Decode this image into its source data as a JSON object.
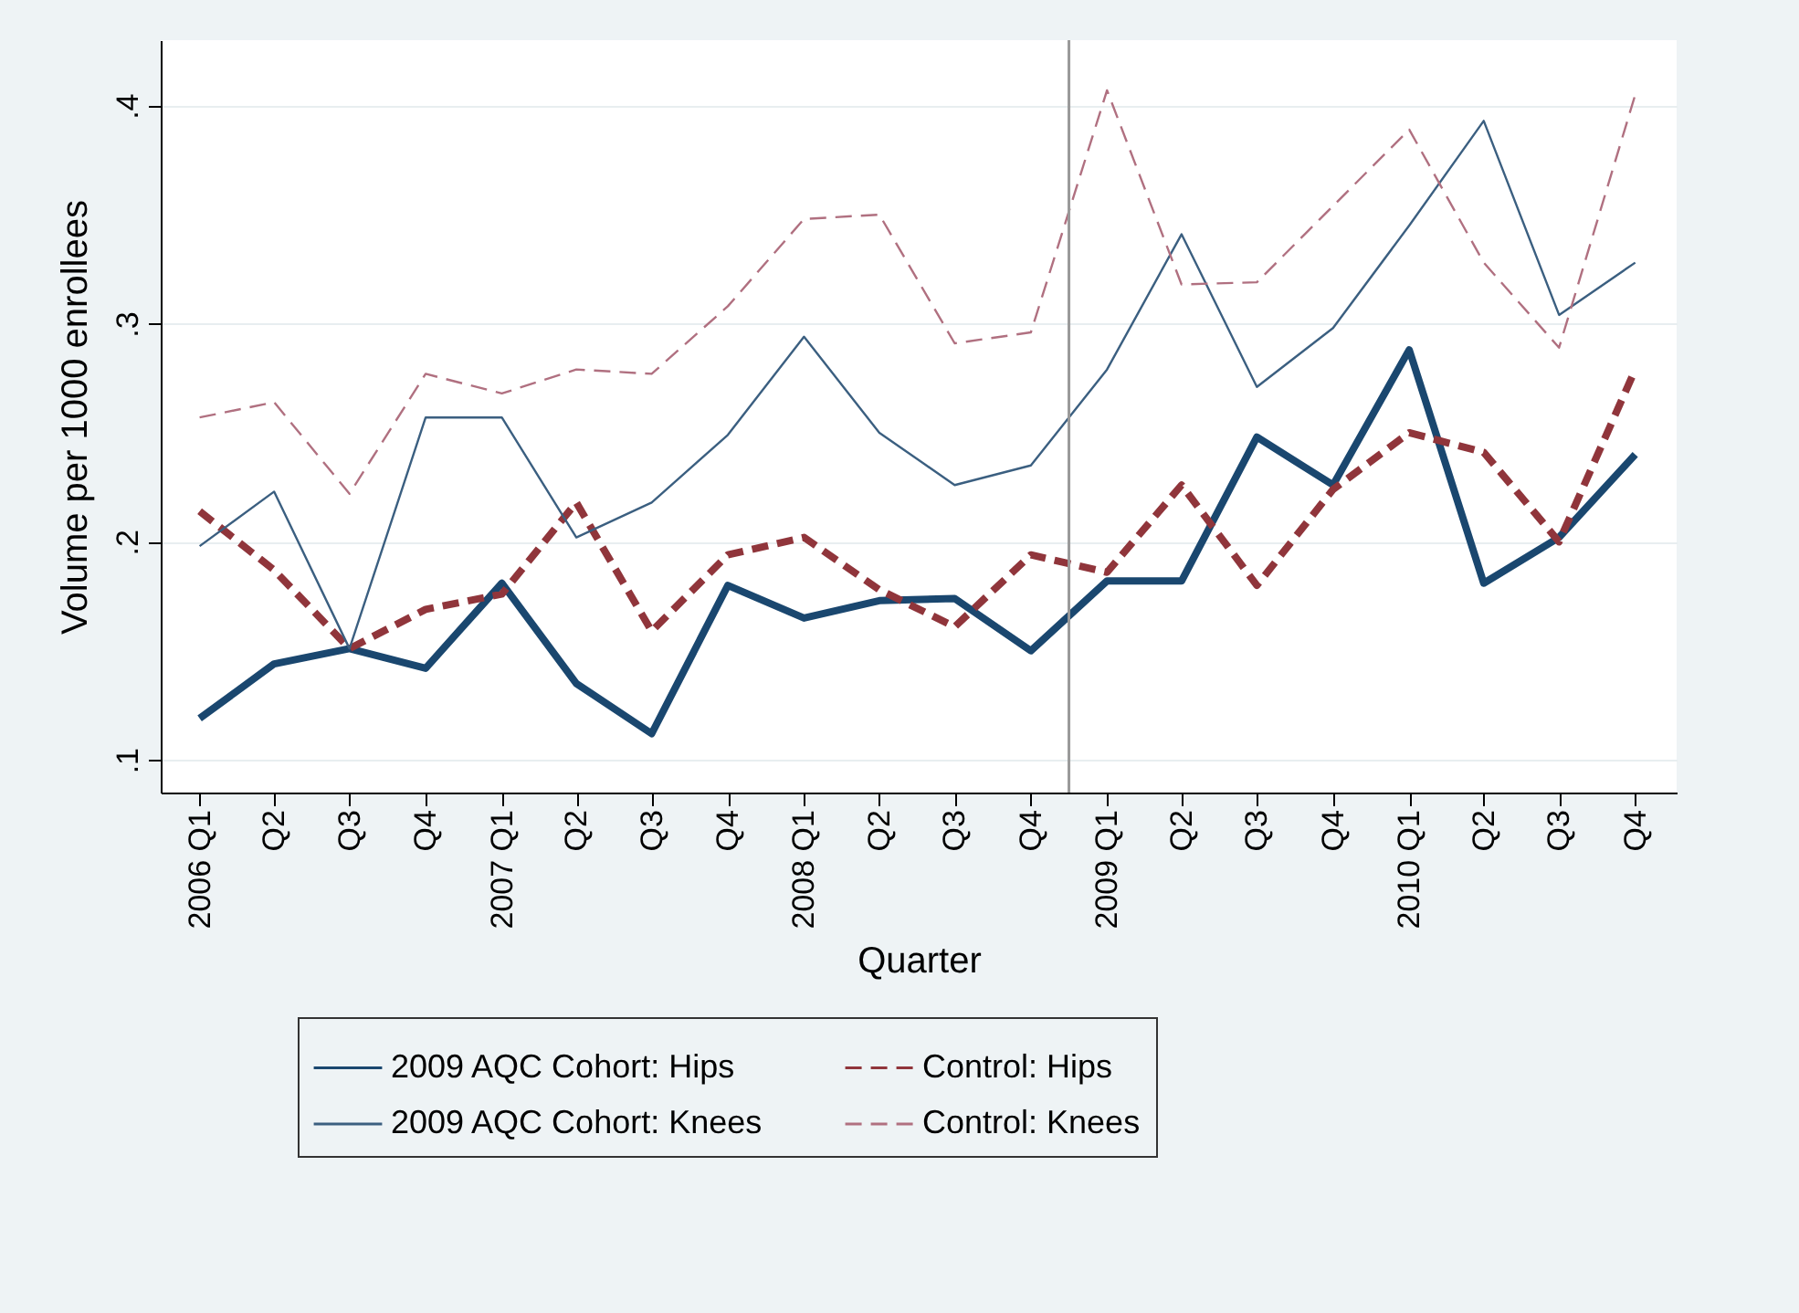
{
  "chart_data": {
    "type": "line",
    "xlabel": "Quarter",
    "ylabel": "Volume per 1000 enrollees",
    "x": [
      "2006-01",
      "2006-04",
      "2006-07",
      "2006-10",
      "2007-01",
      "2007-04",
      "2007-07",
      "2007-10",
      "2008-01",
      "2008-04",
      "2008-07",
      "2008-10",
      "2009-01",
      "2009-04",
      "2009-07",
      "2009-10",
      "2010-01",
      "2010-04",
      "2010-07",
      "2010-10"
    ],
    "series": [
      {
        "name": "2009 AQC Cohort: Hips",
        "color": "#1a476f",
        "line_style": "solid",
        "values": [
          0.119,
          0.144,
          0.151,
          0.142,
          0.181,
          0.135,
          0.112,
          0.18,
          0.165,
          0.173,
          0.174,
          0.15,
          0.182,
          0.182,
          0.248,
          0.226,
          0.288,
          0.181,
          0.202,
          0.24
        ]
      },
      {
        "name": "Control: Hips",
        "color": "#90353b",
        "line_style": "dashed",
        "values": [
          0.214,
          0.187,
          0.151,
          0.169,
          0.176,
          0.218,
          0.159,
          0.194,
          0.202,
          0.178,
          0.161,
          0.194,
          0.186,
          0.226,
          0.18,
          0.224,
          0.25,
          0.241,
          0.2,
          0.279
        ]
      },
      {
        "name": "2009 AQC Cohort: Knees",
        "color": "#3b5f80",
        "line_style": "solid",
        "values": [
          0.198,
          0.223,
          0.151,
          0.257,
          0.257,
          0.202,
          0.218,
          0.249,
          0.294,
          0.25,
          0.226,
          0.235,
          0.279,
          0.341,
          0.271,
          0.298,
          0.345,
          0.393,
          0.304,
          0.328
        ]
      },
      {
        "name": "Control: Knees",
        "color": "#b07080",
        "line_style": "dashed",
        "values": [
          0.257,
          0.264,
          0.222,
          0.277,
          0.268,
          0.279,
          0.277,
          0.308,
          0.348,
          0.35,
          0.291,
          0.296,
          0.407,
          0.318,
          0.319,
          0.354,
          0.389,
          0.328,
          0.289,
          0.405
        ]
      }
    ],
    "xlim": [
      "2005-11-15",
      "2010-11-20"
    ],
    "xticks": [
      {
        "value": "2006-01",
        "label": "2006 Q1"
      },
      {
        "value": "2006-04",
        "label": "Q2"
      },
      {
        "value": "2006-07",
        "label": "Q3"
      },
      {
        "value": "2006-10",
        "label": "Q4"
      },
      {
        "value": "2007-01",
        "label": "2007 Q1"
      },
      {
        "value": "2007-04",
        "label": "Q2"
      },
      {
        "value": "2007-07",
        "label": "Q3"
      },
      {
        "value": "2007-10",
        "label": "Q4"
      },
      {
        "value": "2008-01",
        "label": "2008 Q1"
      },
      {
        "value": "2008-04",
        "label": "Q2"
      },
      {
        "value": "2008-07",
        "label": "Q3"
      },
      {
        "value": "2008-10",
        "label": "Q4"
      },
      {
        "value": "2009-01",
        "label": "2009 Q1"
      },
      {
        "value": "2009-04",
        "label": "Q2"
      },
      {
        "value": "2009-07",
        "label": "Q3"
      },
      {
        "value": "2009-10",
        "label": "Q4"
      },
      {
        "value": "2010-01",
        "label": "2010 Q1"
      },
      {
        "value": "2010-04",
        "label": "Q2"
      },
      {
        "value": "2010-07",
        "label": "Q3"
      },
      {
        "value": "2010-10",
        "label": "Q4"
      }
    ],
    "ylim": [
      0.085,
      0.43
    ],
    "yticks": [
      {
        "value": 0.1,
        "label": ".1"
      },
      {
        "value": 0.2,
        "label": ".2"
      },
      {
        "value": 0.3,
        "label": ".3"
      },
      {
        "value": 0.4,
        "label": ".4"
      }
    ],
    "ref_lines": [
      {
        "axis": "x",
        "value": "2008-11-16",
        "color": "#999999"
      }
    ],
    "grid": "y",
    "legend": "bottom",
    "marker": "none"
  }
}
